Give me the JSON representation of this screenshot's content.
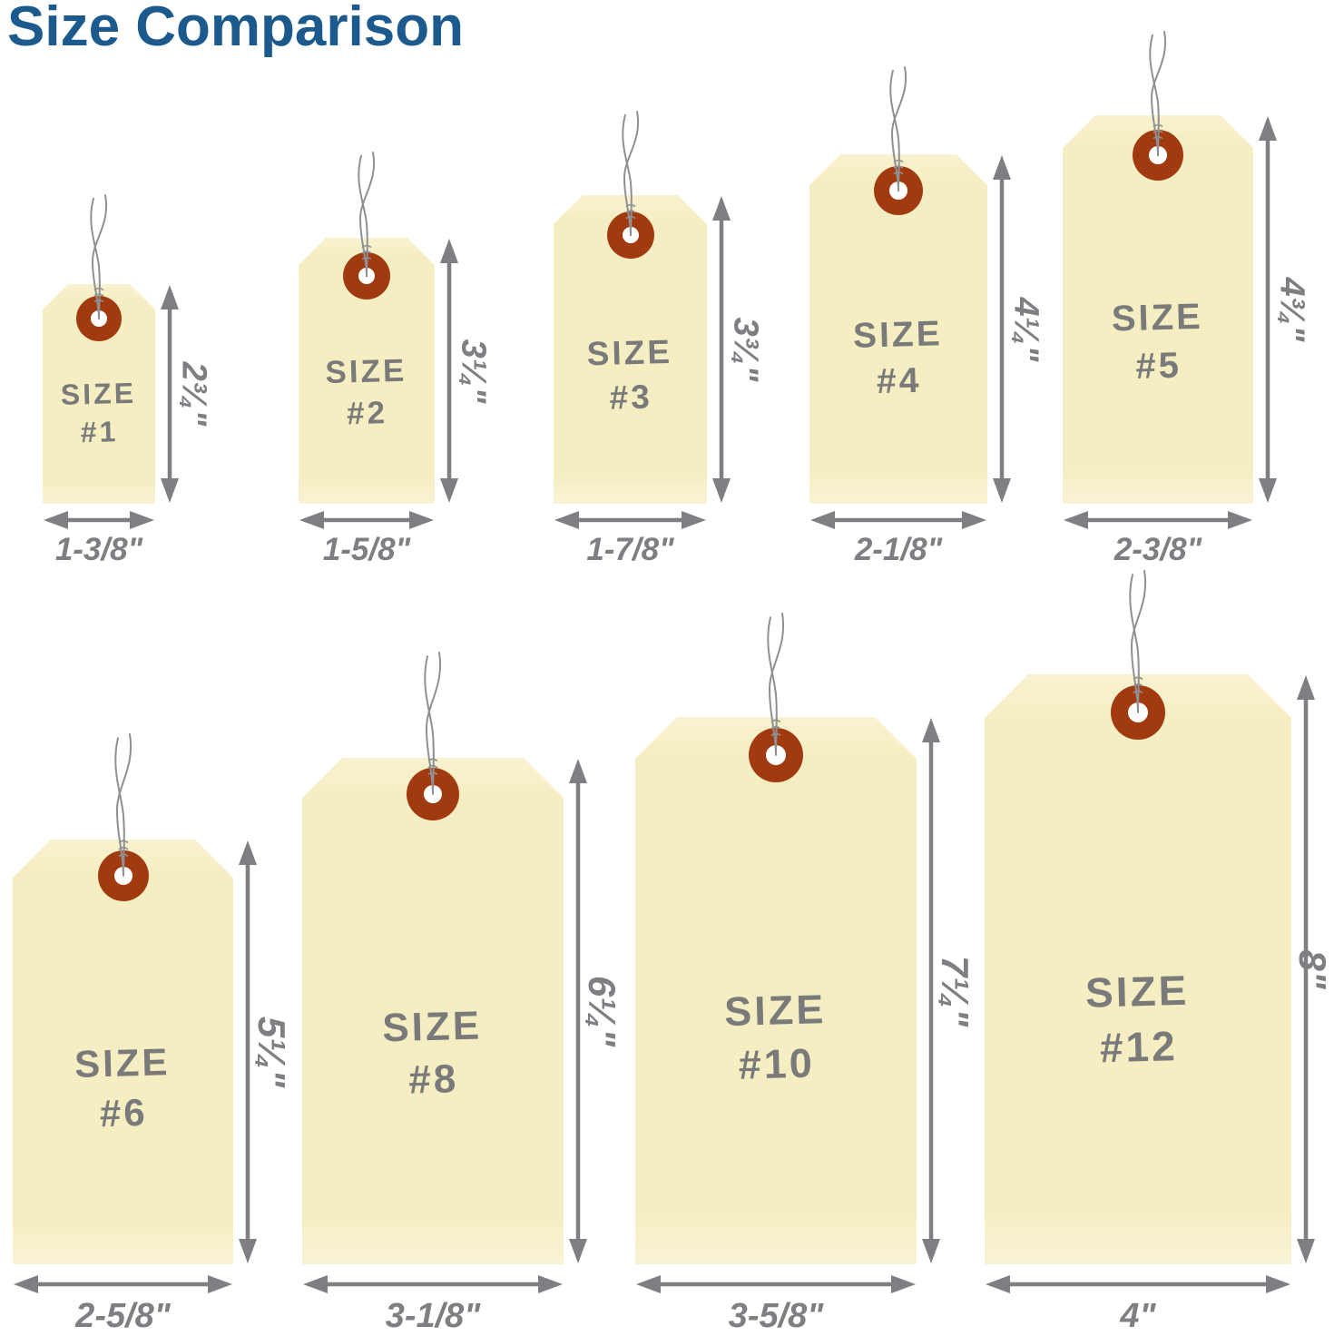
{
  "title": "Size Comparison",
  "colors": {
    "title_blue": "#1c5a8e",
    "tag_fill": "#f6eec3",
    "eyelet_brown": "#a23a10",
    "hole_white": "#ffffff",
    "wire_gray": "#8f9093",
    "dimension_gray": "#7d7f82",
    "tag_text_gray": "#7a7a7a"
  },
  "tags": [
    {
      "id": "1",
      "label_top": "SIZE",
      "label_bottom": "#1",
      "width_label": "1-3/8\"",
      "height_label": "2¾\"",
      "width_inches": 1.375,
      "height_inches": 2.75
    },
    {
      "id": "2",
      "label_top": "SIZE",
      "label_bottom": "#2",
      "width_label": "1-5/8\"",
      "height_label": "3¼\"",
      "width_inches": 1.625,
      "height_inches": 3.25
    },
    {
      "id": "3",
      "label_top": "SIZE",
      "label_bottom": "#3",
      "width_label": "1-7/8\"",
      "height_label": "3¾\"",
      "width_inches": 1.875,
      "height_inches": 3.75
    },
    {
      "id": "4",
      "label_top": "SIZE",
      "label_bottom": "#4",
      "width_label": "2-1/8\"",
      "height_label": "4¼\"",
      "width_inches": 2.125,
      "height_inches": 4.25
    },
    {
      "id": "5",
      "label_top": "SIZE",
      "label_bottom": "#5",
      "width_label": "2-3/8\"",
      "height_label": "4¾\"",
      "width_inches": 2.375,
      "height_inches": 4.75
    },
    {
      "id": "6",
      "label_top": "SIZE",
      "label_bottom": "#6",
      "width_label": "2-5/8\"",
      "height_label": "5¼\"",
      "width_inches": 2.625,
      "height_inches": 5.25
    },
    {
      "id": "8",
      "label_top": "SIZE",
      "label_bottom": "#8",
      "width_label": "3-1/8\"",
      "height_label": "6¼\"",
      "width_inches": 3.125,
      "height_inches": 6.25
    },
    {
      "id": "10",
      "label_top": "SIZE",
      "label_bottom": "#10",
      "width_label": "3-5/8\"",
      "height_label": "7¼\"",
      "width_inches": 3.625,
      "height_inches": 7.25
    },
    {
      "id": "12",
      "label_top": "SIZE",
      "label_bottom": "#12",
      "width_label": "4\"",
      "height_label": "8\"",
      "width_inches": 4.0,
      "height_inches": 8.0
    }
  ]
}
